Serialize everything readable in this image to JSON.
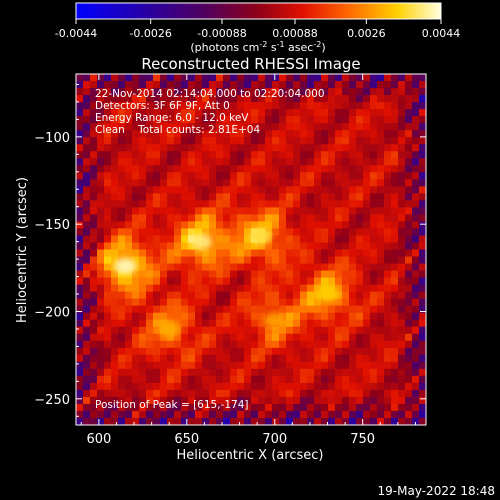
{
  "chart_data": {
    "type": "heatmap",
    "title": "Reconstructed RHESSI Image",
    "xlabel": "Heliocentric X (arcsec)",
    "ylabel": "Heliocentric Y (arcsec)",
    "xlim": [
      587,
      786
    ],
    "ylim": [
      -265,
      -64
    ],
    "x_ticks": [
      600,
      650,
      700,
      750
    ],
    "y_ticks": [
      -100,
      -150,
      -200,
      -250
    ],
    "colorbar": {
      "min": -0.0044,
      "max": 0.0044,
      "ticks": [
        "-0.0044",
        "-0.0026",
        "-0.00088",
        "0.00088",
        "0.0026",
        "0.0044"
      ],
      "unit_label": "(photons cm",
      "unit_sup1": "-2",
      "unit_mid": " s",
      "unit_sup2": "-1",
      "unit_mid2": " asec",
      "unit_sup3": "-2",
      "unit_end": ")"
    },
    "annotations": [
      "22-Nov-2014 02:14:04.000 to 02:20:04.000",
      "Detectors: 3F 6F 9F, Att 0",
      "Energy Range: 6.0 - 12.0 keV",
      "Clean    Total counts: 2.81E+04"
    ],
    "peak_label": "Position of Peak = [615,-174]",
    "sources": [
      {
        "x": 615,
        "y": -174,
        "value": 0.0044
      },
      {
        "x": 658,
        "y": -160,
        "value": 0.004
      },
      {
        "x": 692,
        "y": -157,
        "value": 0.0036
      },
      {
        "x": 730,
        "y": -190,
        "value": 0.0032
      },
      {
        "x": 640,
        "y": -210,
        "value": 0.0026
      },
      {
        "x": 700,
        "y": -205,
        "value": 0.0024
      }
    ]
  },
  "footer": {
    "date": "19-May-2022 18:48"
  }
}
